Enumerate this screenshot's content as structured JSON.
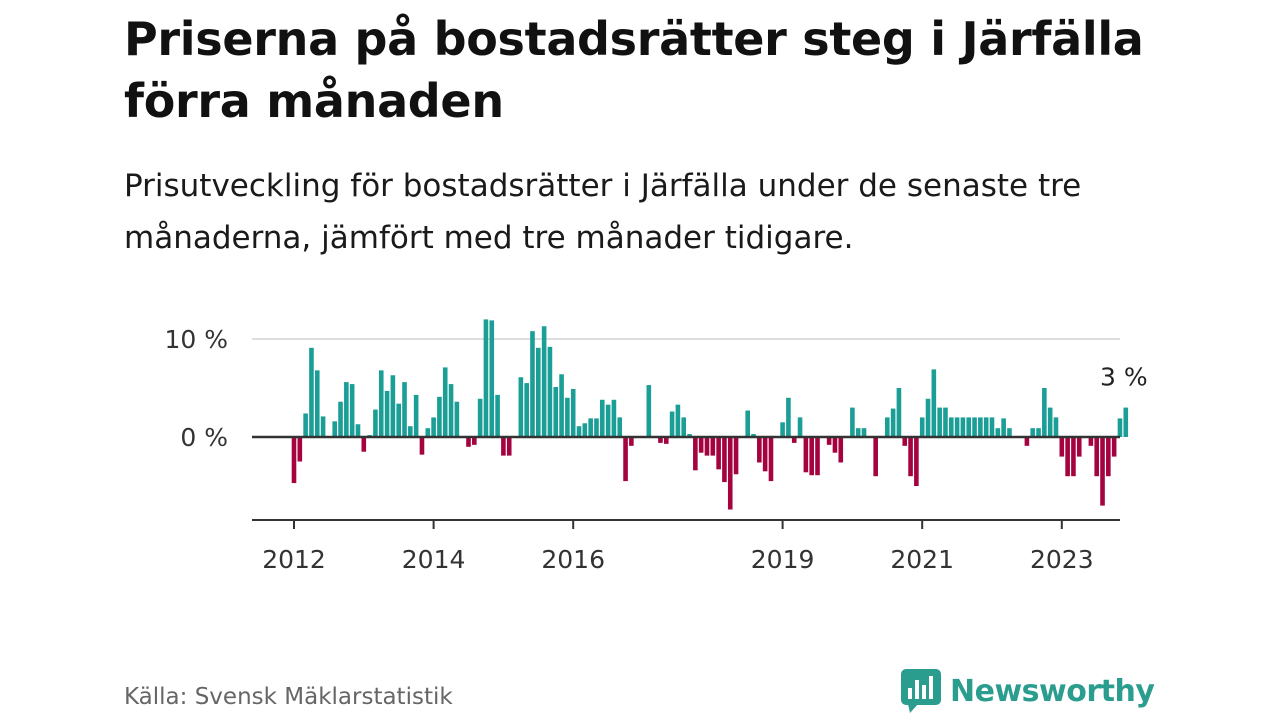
{
  "title": "Priserna på bostadsrätter steg i Järfälla förra månaden",
  "subtitle": "Prisutveckling för bostadsrätter i Järfälla under de senaste tre månaderna, jämfört med tre månader tidigare.",
  "source": "Källa: Svensk Mäklarstatistik",
  "brand": "Newsworthy",
  "colors": {
    "positive": "#1a9e96",
    "negative": "#a5033f",
    "brand": "#2a9d8f"
  },
  "chart_data": {
    "type": "bar",
    "title": "Priserna på bostadsrätter steg i Järfälla förra månaden",
    "xlabel": "",
    "ylabel": "",
    "start": "2012-01",
    "ylim": [
      -8.5,
      12.5
    ],
    "y_ticks": [
      {
        "value": 0,
        "label": "0 %"
      },
      {
        "value": 10,
        "label": "10 %"
      }
    ],
    "x_ticks": [
      {
        "year": 2012,
        "label": "2012"
      },
      {
        "year": 2014,
        "label": "2014"
      },
      {
        "year": 2016,
        "label": "2016"
      },
      {
        "year": 2019,
        "label": "2019"
      },
      {
        "year": 2021,
        "label": "2021"
      },
      {
        "year": 2023,
        "label": "2023"
      }
    ],
    "annotation": {
      "text": "3 %",
      "value": 3
    },
    "grid": "horizontal",
    "values": [
      -4.7,
      -2.5,
      2.4,
      9.1,
      6.8,
      2.1,
      0.0,
      1.6,
      3.6,
      5.6,
      5.4,
      1.3,
      -1.5,
      0.2,
      2.8,
      6.8,
      4.7,
      6.3,
      3.4,
      5.6,
      1.1,
      4.3,
      -1.8,
      0.9,
      2.0,
      4.1,
      7.1,
      5.4,
      3.6,
      0.0,
      -1.0,
      -0.8,
      3.9,
      12.0,
      11.9,
      4.3,
      -1.9,
      -1.9,
      0.0,
      6.1,
      5.5,
      10.8,
      9.1,
      11.3,
      9.2,
      5.1,
      6.4,
      4.0,
      4.9,
      1.1,
      1.4,
      1.9,
      1.9,
      3.8,
      3.3,
      3.8,
      2.0,
      -4.5,
      -0.9,
      0.0,
      0.0,
      5.3,
      0.0,
      -0.6,
      -0.7,
      2.6,
      3.3,
      2.0,
      0.3,
      -3.4,
      -1.6,
      -1.9,
      -1.9,
      -3.3,
      -4.6,
      -7.4,
      -3.8,
      0.0,
      2.7,
      0.3,
      -2.6,
      -3.5,
      -4.5,
      0.0,
      1.5,
      4.0,
      -0.6,
      2.0,
      -3.6,
      -3.9,
      -3.9,
      0.0,
      -0.8,
      -1.6,
      -2.6,
      0.0,
      3.0,
      0.9,
      0.9,
      0.0,
      -4.0,
      0.0,
      2.0,
      2.9,
      5.0,
      -0.9,
      -4.0,
      -5.0,
      2.0,
      3.9,
      6.9,
      3.0,
      3.0,
      2.0,
      2.0,
      2.0,
      2.0,
      2.0,
      2.0,
      2.0,
      2.0,
      0.9,
      1.9,
      0.9,
      0.0,
      0.0,
      -0.9,
      0.9,
      0.9,
      5.0,
      3.0,
      2.0,
      -2.0,
      -4.0,
      -4.0,
      -2.0,
      0.0,
      -0.9,
      -4.0,
      -7.0,
      -4.0,
      -2.0,
      1.9,
      3.0
    ]
  }
}
